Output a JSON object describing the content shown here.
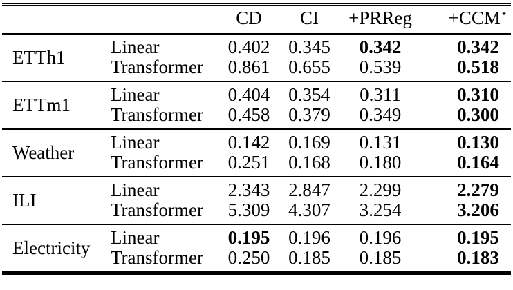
{
  "header": {
    "cd": "CD",
    "ci": "CI",
    "prreg": "+PRReg",
    "ccm_base": "+CCM",
    "ccm_sup": "⋆"
  },
  "groups": [
    {
      "dataset": "ETTh1",
      "rows": [
        {
          "method": "Linear",
          "cd": {
            "v": "0.402",
            "c": "val"
          },
          "ci": {
            "v": "0.345",
            "c": "val"
          },
          "prreg": {
            "v": "0.342",
            "c": "val bold"
          },
          "ccm": {
            "v": "0.342",
            "c": "val bold"
          }
        },
        {
          "method": "Transformer",
          "cd": {
            "v": "0.861",
            "c": "val"
          },
          "ci": {
            "v": "0.655",
            "c": "val"
          },
          "prreg": {
            "v": "0.539",
            "c": "val"
          },
          "ccm": {
            "v": "0.518",
            "c": "val bold"
          }
        }
      ]
    },
    {
      "dataset": "ETTm1",
      "rows": [
        {
          "method": "Linear",
          "cd": {
            "v": "0.404",
            "c": "val"
          },
          "ci": {
            "v": "0.354",
            "c": "val"
          },
          "prreg": {
            "v": "0.311",
            "c": "val"
          },
          "ccm": {
            "v": "0.310",
            "c": "val bold"
          }
        },
        {
          "method": "Transformer",
          "cd": {
            "v": "0.458",
            "c": "val"
          },
          "ci": {
            "v": "0.379",
            "c": "val"
          },
          "prreg": {
            "v": "0.349",
            "c": "val"
          },
          "ccm": {
            "v": "0.300",
            "c": "val bold"
          }
        }
      ]
    },
    {
      "dataset": "Weather",
      "rows": [
        {
          "method": "Linear",
          "cd": {
            "v": "0.142",
            "c": "val"
          },
          "ci": {
            "v": "0.169",
            "c": "val"
          },
          "prreg": {
            "v": "0.131",
            "c": "val"
          },
          "ccm": {
            "v": "0.130",
            "c": "val bold"
          }
        },
        {
          "method": "Transformer",
          "cd": {
            "v": "0.251",
            "c": "val"
          },
          "ci": {
            "v": "0.168",
            "c": "val"
          },
          "prreg": {
            "v": "0.180",
            "c": "val"
          },
          "ccm": {
            "v": "0.164",
            "c": "val bold"
          }
        }
      ]
    },
    {
      "dataset": "ILI",
      "rows": [
        {
          "method": "Linear",
          "cd": {
            "v": "2.343",
            "c": "val"
          },
          "ci": {
            "v": "2.847",
            "c": "val"
          },
          "prreg": {
            "v": "2.299",
            "c": "val"
          },
          "ccm": {
            "v": "2.279",
            "c": "val bold"
          }
        },
        {
          "method": "Transformer",
          "cd": {
            "v": "5.309",
            "c": "val"
          },
          "ci": {
            "v": "4.307",
            "c": "val"
          },
          "prreg": {
            "v": "3.254",
            "c": "val"
          },
          "ccm": {
            "v": "3.206",
            "c": "val bold"
          }
        }
      ]
    },
    {
      "dataset": "Electricity",
      "rows": [
        {
          "method": "Linear",
          "cd": {
            "v": "0.195",
            "c": "val bold"
          },
          "ci": {
            "v": "0.196",
            "c": "val"
          },
          "prreg": {
            "v": "0.196",
            "c": "val"
          },
          "ccm": {
            "v": "0.195",
            "c": "val bold"
          }
        },
        {
          "method": "Transformer",
          "cd": {
            "v": "0.250",
            "c": "val"
          },
          "ci": {
            "v": "0.185",
            "c": "val"
          },
          "prreg": {
            "v": "0.185",
            "c": "val"
          },
          "ccm": {
            "v": "0.183",
            "c": "val bold"
          }
        }
      ]
    }
  ]
}
